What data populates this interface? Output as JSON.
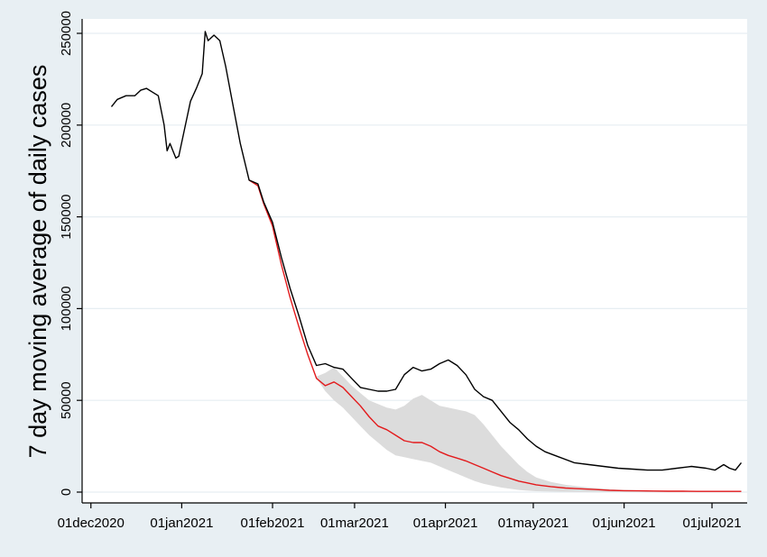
{
  "chart_data": {
    "type": "line",
    "title": "",
    "xlabel": "",
    "ylabel": "7 day moving average of daily cases",
    "xlim": [
      "2020-11-28",
      "2021-07-13"
    ],
    "ylim": [
      0,
      250000
    ],
    "y_ticks": [
      0,
      50000,
      100000,
      150000,
      200000,
      250000
    ],
    "y_tick_labels": [
      "0",
      "50000",
      "100000",
      "150000",
      "200000",
      "250000"
    ],
    "x_ticks": [
      "2020-12-01",
      "2021-01-01",
      "2021-02-01",
      "2021-03-01",
      "2021-04-01",
      "2021-05-01",
      "2021-06-01",
      "2021-07-01"
    ],
    "x_tick_labels": [
      "01dec2020",
      "01jan2021",
      "01feb2021",
      "01mar2021",
      "01apr2021",
      "01may2021",
      "01jun2021",
      "01jul2021"
    ],
    "grid": "horizontal",
    "legend": "none",
    "colors": {
      "observed": "#000000",
      "projected": "#e31a1c",
      "band": "#dcdcdc",
      "background": "#e8eff3",
      "plot": "#ffffff",
      "grid": "#e6eef2"
    },
    "series": [
      {
        "style": "black-line",
        "x": [
          "2020-12-08",
          "2020-12-10",
          "2020-12-13",
          "2020-12-16",
          "2020-12-18",
          "2020-12-20",
          "2020-12-22",
          "2020-12-24",
          "2020-12-26",
          "2020-12-27",
          "2020-12-28",
          "2020-12-29",
          "2020-12-30",
          "2020-12-31",
          "2021-01-02",
          "2021-01-04",
          "2021-01-06",
          "2021-01-08",
          "2021-01-09",
          "2021-01-10",
          "2021-01-12",
          "2021-01-14",
          "2021-01-16",
          "2021-01-18",
          "2021-01-21",
          "2021-01-24",
          "2021-01-27",
          "2021-01-29",
          "2021-02-01",
          "2021-02-04",
          "2021-02-07",
          "2021-02-10",
          "2021-02-13",
          "2021-02-16",
          "2021-02-19",
          "2021-02-22",
          "2021-02-25",
          "2021-02-28",
          "2021-03-03",
          "2021-03-06",
          "2021-03-09",
          "2021-03-12",
          "2021-03-15",
          "2021-03-18",
          "2021-03-21",
          "2021-03-24",
          "2021-03-27",
          "2021-03-30",
          "2021-04-02",
          "2021-04-05",
          "2021-04-08",
          "2021-04-11",
          "2021-04-14",
          "2021-04-17",
          "2021-04-20",
          "2021-04-23",
          "2021-04-26",
          "2021-04-29",
          "2021-05-02",
          "2021-05-05",
          "2021-05-10",
          "2021-05-15",
          "2021-05-20",
          "2021-05-25",
          "2021-05-30",
          "2021-06-04",
          "2021-06-09",
          "2021-06-14",
          "2021-06-19",
          "2021-06-24",
          "2021-06-29",
          "2021-07-02",
          "2021-07-05",
          "2021-07-07",
          "2021-07-09",
          "2021-07-11"
        ],
        "values": [
          210000,
          214000,
          216000,
          216000,
          219000,
          220000,
          218000,
          216000,
          200000,
          186000,
          190000,
          186000,
          182000,
          183000,
          198000,
          213000,
          220000,
          228000,
          251000,
          246000,
          249000,
          246000,
          232000,
          215000,
          190000,
          170000,
          168000,
          158000,
          147000,
          128000,
          111000,
          96000,
          80000,
          69000,
          70000,
          68000,
          67000,
          62000,
          57000,
          56000,
          55000,
          55000,
          56000,
          64000,
          68000,
          66000,
          67000,
          70000,
          72000,
          69000,
          64000,
          56000,
          52000,
          50000,
          44000,
          38000,
          34000,
          29000,
          25000,
          22000,
          19000,
          16000,
          15000,
          14000,
          13000,
          12500,
          12000,
          12000,
          13000,
          14000,
          13000,
          12000,
          15000,
          13000,
          12000,
          16000
        ]
      },
      {
        "style": "red-line",
        "x": [
          "2021-01-24",
          "2021-01-27",
          "2021-01-29",
          "2021-02-01",
          "2021-02-04",
          "2021-02-07",
          "2021-02-10",
          "2021-02-13",
          "2021-02-16",
          "2021-02-19",
          "2021-02-22",
          "2021-02-25",
          "2021-02-28",
          "2021-03-03",
          "2021-03-06",
          "2021-03-09",
          "2021-03-12",
          "2021-03-15",
          "2021-03-18",
          "2021-03-21",
          "2021-03-24",
          "2021-03-27",
          "2021-03-30",
          "2021-04-02",
          "2021-04-05",
          "2021-04-08",
          "2021-04-11",
          "2021-04-14",
          "2021-04-17",
          "2021-04-20",
          "2021-04-23",
          "2021-04-26",
          "2021-04-29",
          "2021-05-02",
          "2021-05-07",
          "2021-05-12",
          "2021-05-17",
          "2021-05-22",
          "2021-05-27",
          "2021-06-01",
          "2021-06-06",
          "2021-06-11",
          "2021-06-16",
          "2021-06-21",
          "2021-06-26",
          "2021-07-01",
          "2021-07-06",
          "2021-07-11"
        ],
        "values": [
          170000,
          167000,
          157000,
          145000,
          124000,
          106000,
          90000,
          75000,
          62000,
          58000,
          60000,
          57000,
          52000,
          47000,
          41000,
          36000,
          34000,
          31000,
          28000,
          27000,
          27000,
          25000,
          22000,
          20000,
          18500,
          17000,
          15000,
          13000,
          11000,
          9000,
          7500,
          6000,
          5000,
          4000,
          3000,
          2200,
          1800,
          1400,
          1000,
          800,
          700,
          600,
          500,
          500,
          400,
          400,
          400,
          400
        ]
      },
      {
        "style": "grey-band",
        "x": [
          "2021-02-16",
          "2021-02-19",
          "2021-02-22",
          "2021-02-25",
          "2021-02-28",
          "2021-03-03",
          "2021-03-06",
          "2021-03-09",
          "2021-03-12",
          "2021-03-15",
          "2021-03-18",
          "2021-03-21",
          "2021-03-24",
          "2021-03-27",
          "2021-03-30",
          "2021-04-02",
          "2021-04-05",
          "2021-04-08",
          "2021-04-11",
          "2021-04-14",
          "2021-04-17",
          "2021-04-20",
          "2021-04-23",
          "2021-04-26",
          "2021-04-29",
          "2021-05-02",
          "2021-05-07",
          "2021-05-12",
          "2021-05-17",
          "2021-05-22",
          "2021-05-27",
          "2021-06-01",
          "2021-06-06",
          "2021-06-11",
          "2021-06-16",
          "2021-06-21",
          "2021-06-26",
          "2021-07-01",
          "2021-07-06",
          "2021-07-11"
        ],
        "upper": [
          63000,
          65000,
          68000,
          63000,
          58000,
          54000,
          50000,
          48000,
          46000,
          45000,
          47000,
          51000,
          53000,
          50000,
          47000,
          46000,
          45000,
          44000,
          42000,
          37000,
          31000,
          25000,
          20000,
          15000,
          11000,
          8000,
          5500,
          4000,
          3000,
          2200,
          1600,
          1200,
          1000,
          800,
          700,
          600,
          500,
          500,
          400,
          400
        ],
        "lower": [
          62000,
          55000,
          50000,
          46000,
          41000,
          36000,
          31000,
          27000,
          23000,
          20000,
          19000,
          18000,
          17000,
          16000,
          14000,
          12000,
          10000,
          8000,
          6000,
          4500,
          3500,
          2500,
          1800,
          1200,
          800,
          500,
          300,
          200,
          100,
          0,
          0,
          0,
          0,
          0,
          0,
          0,
          0,
          0,
          0,
          0
        ]
      }
    ]
  }
}
